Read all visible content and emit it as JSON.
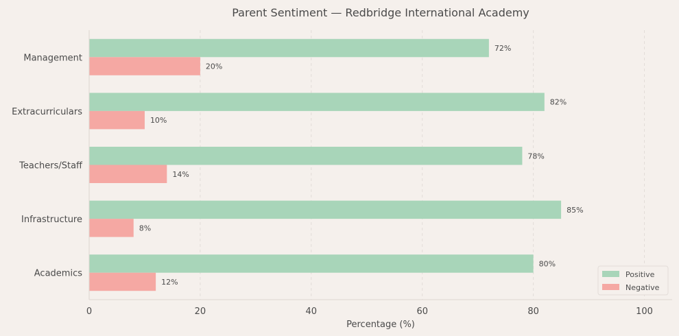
{
  "chart_data": {
    "type": "bar",
    "orientation": "horizontal",
    "title": "Parent Sentiment — Redbridge International Academy",
    "xlabel": "Percentage (%)",
    "ylabel": "",
    "categories": [
      "Management",
      "Extracurriculars",
      "Teachers/Staff",
      "Infrastructure",
      "Academics"
    ],
    "series": [
      {
        "name": "Positive",
        "values": [
          72,
          82,
          78,
          85,
          80
        ],
        "color": "#a8d5b9"
      },
      {
        "name": "Negative",
        "values": [
          20,
          10,
          14,
          8,
          12
        ],
        "color": "#f5a8a3"
      }
    ],
    "value_suffix": "%",
    "xlim": [
      0,
      105
    ],
    "xticks": [
      "0",
      "20",
      "40",
      "60",
      "80",
      "100"
    ],
    "grid": "vertical-dashed",
    "legend_position": "bottom-right",
    "background": "#f5f0ec"
  }
}
